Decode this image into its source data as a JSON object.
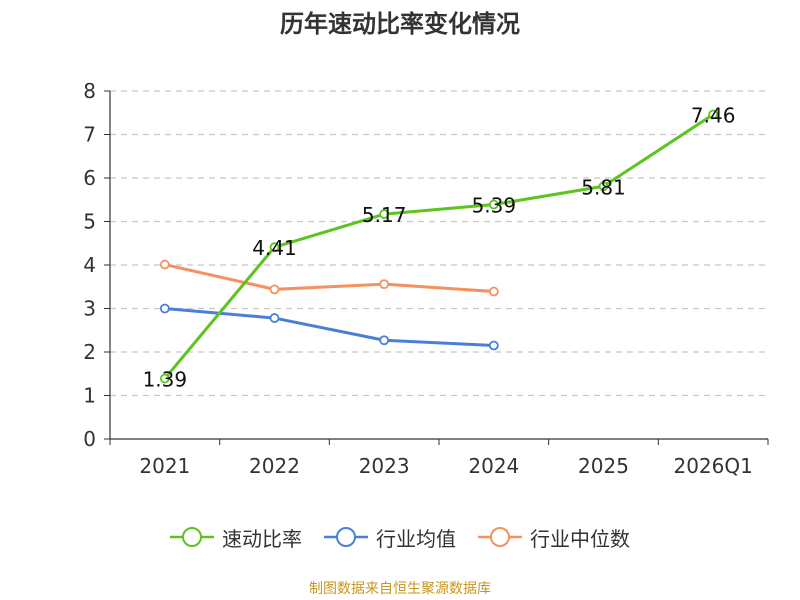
{
  "chart_data": {
    "type": "line",
    "title": "历年速动比率变化情况",
    "categories": [
      "2021",
      "2022",
      "2023",
      "2024",
      "2025",
      "2026Q1"
    ],
    "ylim": [
      0,
      8
    ],
    "yticks": [
      0,
      1,
      2,
      3,
      4,
      5,
      6,
      7,
      8
    ],
    "grid": true,
    "legend_position": "bottom",
    "series": [
      {
        "name": "速动比率",
        "color": "#5cc31f",
        "values": [
          1.39,
          4.41,
          5.17,
          5.39,
          5.81,
          7.46
        ],
        "show_labels": true
      },
      {
        "name": "行业均值",
        "color": "#4a7fd8",
        "values": [
          3.0,
          2.78,
          2.27,
          2.15,
          null,
          null
        ],
        "show_labels": false
      },
      {
        "name": "行业中位数",
        "color": "#f5915e",
        "values": [
          4.01,
          3.44,
          3.56,
          3.39,
          null,
          null
        ],
        "show_labels": false
      }
    ]
  },
  "source": "制图数据来自恒生聚源数据库"
}
